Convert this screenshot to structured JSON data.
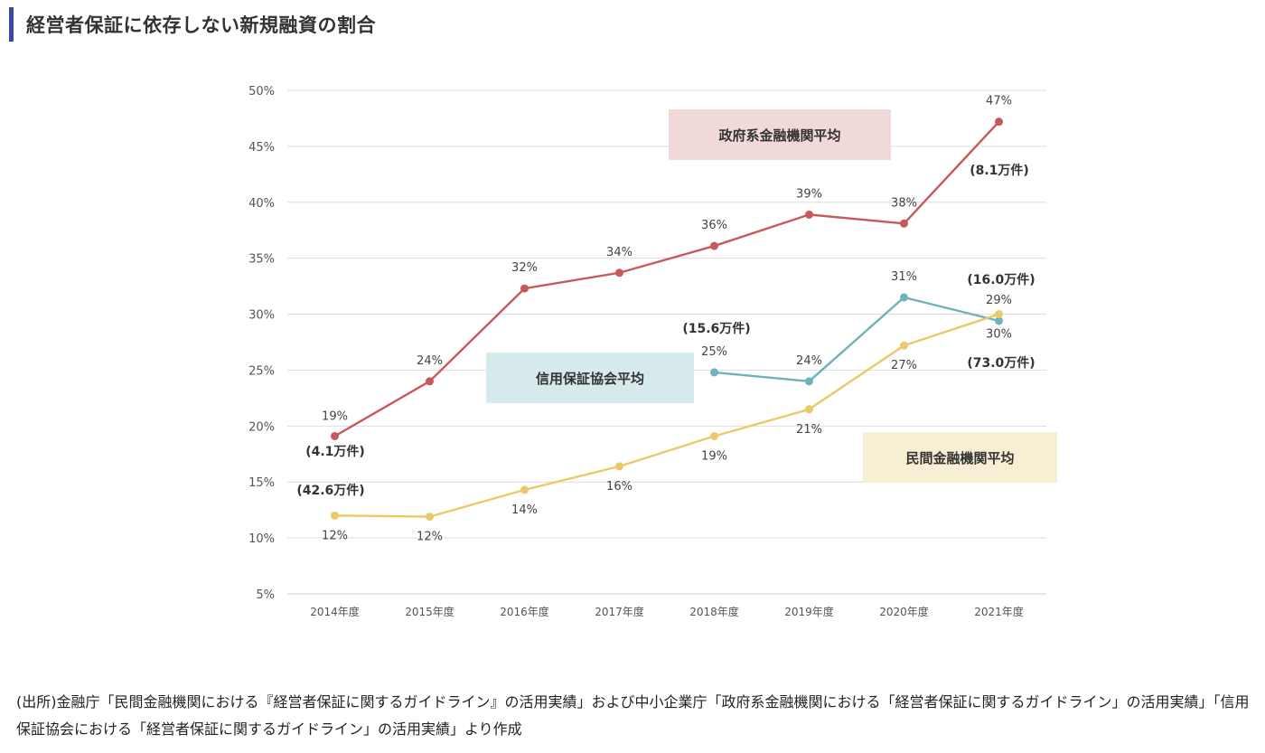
{
  "page": {
    "title": "経営者保証に依存しない新規融資の割合",
    "source": "(出所)金融庁「民間金融機関における『経営者保証に関するガイドライン』の活用実績」および中小企業庁「政府系金融機関における「経営者保証に関するガイドライン」の活用実績」「信用保証協会における「経営者保証に関するガイドライン」の活用実績」より作成"
  },
  "chart_data": {
    "type": "line",
    "categories": [
      "2014年度",
      "2015年度",
      "2016年度",
      "2017年度",
      "2018年度",
      "2019年度",
      "2020年度",
      "2021年度"
    ],
    "ylim": [
      5,
      50
    ],
    "yticks": [
      "5%",
      "10%",
      "15%",
      "20%",
      "25%",
      "30%",
      "35%",
      "40%",
      "45%",
      "50%"
    ],
    "ytick_values": [
      5,
      10,
      15,
      20,
      25,
      30,
      35,
      40,
      45,
      50
    ],
    "grid": true,
    "series": [
      {
        "name": "政府系金融機関平均",
        "color": "#c9585a",
        "label_bg": "#f1d8d9",
        "values": [
          19.1,
          24.0,
          32.3,
          33.7,
          36.1,
          38.9,
          38.1,
          47.2
        ],
        "data_labels": [
          "19%",
          "24%",
          "32%",
          "34%",
          "36%",
          "39%",
          "38%",
          "47%"
        ],
        "notes": [
          "(4.1万件)",
          "",
          "",
          "",
          "",
          "",
          "",
          "(8.1万件)"
        ]
      },
      {
        "name": "信用保証協会平均",
        "color": "#6eb3b8",
        "label_bg": "#d6eaec",
        "values": [
          null,
          null,
          null,
          null,
          24.8,
          24.0,
          31.5,
          29.4
        ],
        "data_labels": [
          "",
          "",
          "",
          "",
          "25%",
          "24%",
          "31%",
          "29%"
        ],
        "notes": [
          "",
          "",
          "",
          "",
          "(15.6万件)",
          "",
          "",
          "(16.0万件)"
        ]
      },
      {
        "name": "民間金融機関平均",
        "color": "#ebc86a",
        "label_bg": "#f7efd4",
        "values": [
          12.0,
          11.9,
          14.3,
          16.4,
          19.1,
          21.5,
          27.2,
          30.0
        ],
        "data_labels": [
          "12%",
          "12%",
          "14%",
          "16%",
          "19%",
          "21%",
          "27%",
          "30%"
        ],
        "notes": [
          "(42.6万件)",
          "",
          "",
          "",
          "",
          "",
          "",
          "(73.0万件)"
        ]
      }
    ]
  }
}
